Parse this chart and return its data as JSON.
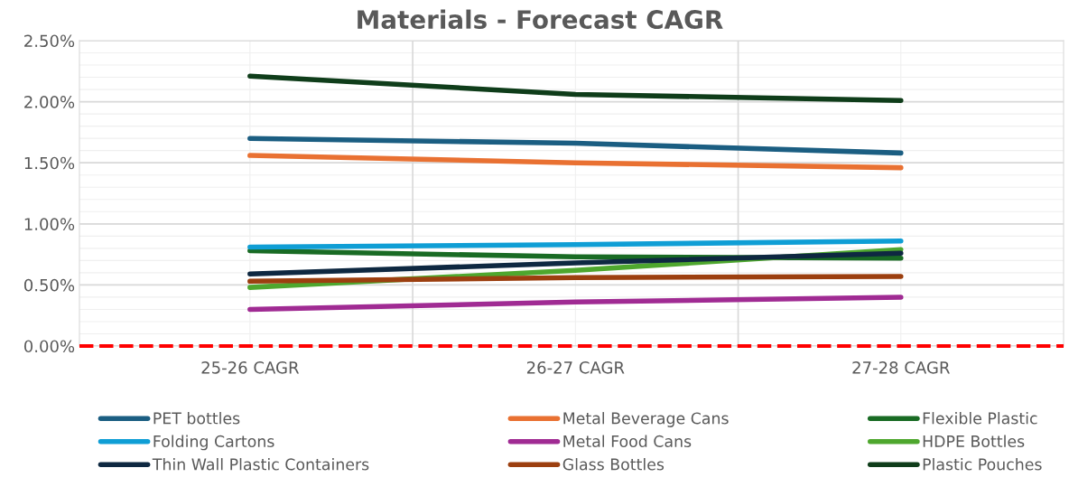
{
  "chart_data": {
    "type": "line",
    "title": "Materials - Forecast CAGR",
    "categories": [
      "25-26 CAGR",
      "26-27 CAGR",
      "27-28 CAGR"
    ],
    "series": [
      {
        "name": "PET bottles",
        "color": "#1b5e82",
        "values": [
          1.7,
          1.66,
          1.58
        ]
      },
      {
        "name": "Metal Beverage Cans",
        "color": "#e97132",
        "values": [
          1.56,
          1.5,
          1.46
        ]
      },
      {
        "name": "Flexible Plastic",
        "color": "#196b24",
        "values": [
          0.78,
          0.73,
          0.72
        ]
      },
      {
        "name": "Folding Cartons",
        "color": "#0f9ed5",
        "values": [
          0.81,
          0.83,
          0.86
        ]
      },
      {
        "name": "Metal Food Cans",
        "color": "#a02b93",
        "values": [
          0.3,
          0.36,
          0.4
        ]
      },
      {
        "name": "HDPE Bottles",
        "color": "#4ea72e",
        "values": [
          0.48,
          0.62,
          0.79
        ]
      },
      {
        "name": "Thin Wall Plastic Containers",
        "color": "#0e2841",
        "values": [
          0.59,
          0.68,
          0.76
        ]
      },
      {
        "name": "Glass Bottles",
        "color": "#9c3f0f",
        "values": [
          0.53,
          0.56,
          0.57
        ]
      },
      {
        "name": "Plastic Pouches",
        "color": "#0f3d1a",
        "values": [
          2.21,
          2.06,
          2.01
        ]
      }
    ],
    "ylim": [
      0,
      2.5
    ],
    "yticks": [
      {
        "value": 0,
        "label": "0.00%"
      },
      {
        "value": 0.5,
        "label": "0.50%"
      },
      {
        "value": 1,
        "label": "1.00%"
      },
      {
        "value": 1.5,
        "label": "1.50%"
      },
      {
        "value": 2,
        "label": "2.00%"
      },
      {
        "value": 2.5,
        "label": "2.50%"
      }
    ],
    "ref_lines": [
      {
        "axis": "y",
        "value": 0,
        "color": "#ff0000",
        "line_style": "dashed"
      }
    ],
    "grid": true,
    "legend": "bottom",
    "marker": "none",
    "line_style": "solid"
  }
}
